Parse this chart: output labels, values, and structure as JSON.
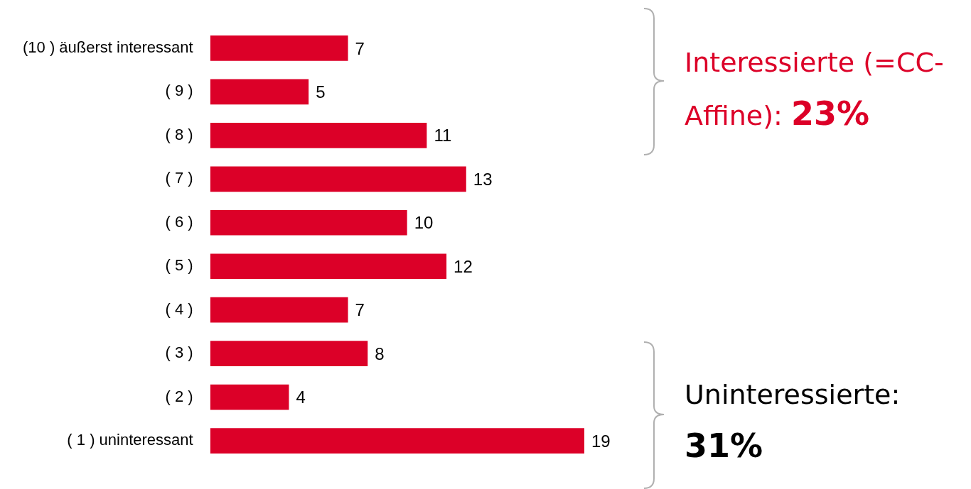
{
  "chart_data": {
    "type": "bar",
    "orientation": "horizontal",
    "categories": [
      "(10 ) äußerst interessant",
      "( 9 )",
      "( 8 )",
      "( 7 )",
      "( 6 )",
      "( 5 )",
      "( 4 )",
      "( 3 )",
      "( 2 )",
      "( 1 ) uninteressant"
    ],
    "values": [
      7,
      5,
      11,
      13,
      10,
      12,
      7,
      8,
      4,
      19
    ],
    "color": "#dc0028",
    "data_labels": true,
    "grid": false,
    "legend": false,
    "tick_labels": "y",
    "annotations": [
      "Interessierte (=CC-Affine): 23%",
      "Uninteressierte: 31%"
    ]
  }
}
